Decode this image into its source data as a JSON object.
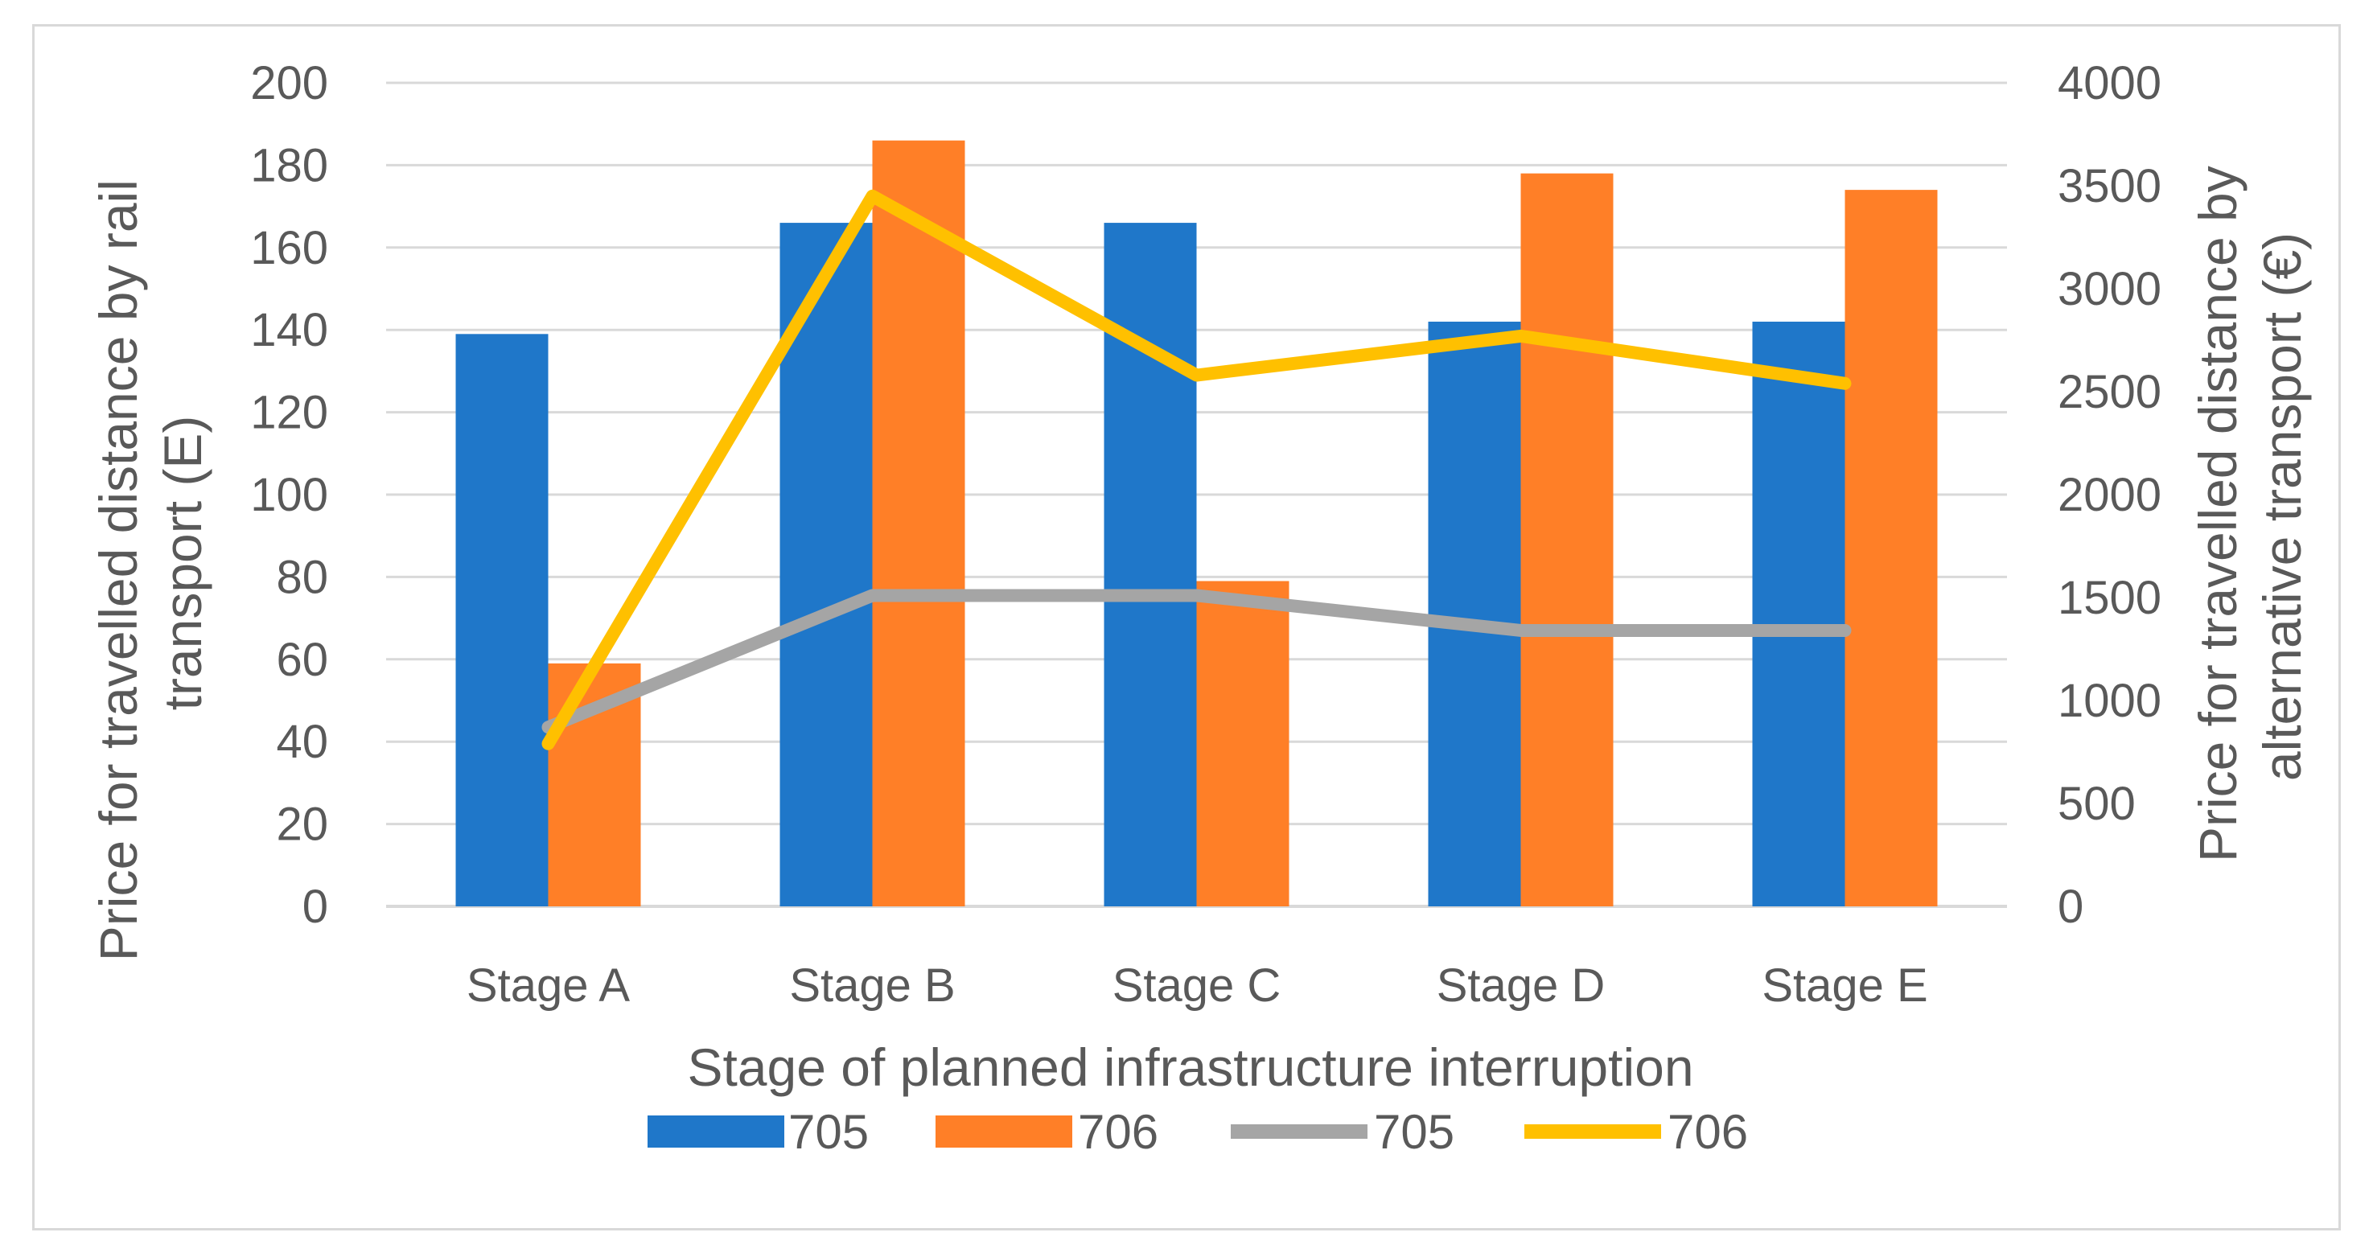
{
  "chart_data": {
    "type": "bar",
    "title": "",
    "categories": [
      "Stage A",
      "Stage B",
      "Stage C",
      "Stage D",
      "Stage E"
    ],
    "xlabel": "Stage of planned infrastructure interruption",
    "ylabel_left": "Price for travelled distance by rail transport (E)",
    "ylabel_left_lines": [
      "Price for travelled distance by rail",
      "transport (E)"
    ],
    "ylabel_right": "Price for travelled distance by alternative transport (€)",
    "ylabel_right_lines": [
      "Price for travelled distance by",
      "alternative transport (€)"
    ],
    "ylim_left": [
      0,
      200
    ],
    "ylim_right": [
      0,
      4000
    ],
    "yticks_left": [
      "0",
      "20",
      "40",
      "60",
      "80",
      "100",
      "120",
      "140",
      "160",
      "180",
      "200"
    ],
    "yticks_right": [
      "0",
      "500",
      "1000",
      "1500",
      "2000",
      "2500",
      "3000",
      "3500",
      "4000"
    ],
    "grid": true,
    "legend_position": "bottom",
    "bar_series": [
      {
        "name": "705",
        "axis": "left",
        "color": "#1f77c9",
        "values": [
          139,
          166,
          166,
          142,
          142
        ]
      },
      {
        "name": "706",
        "axis": "left",
        "color": "#ff7f27",
        "values": [
          59,
          186,
          79,
          178,
          174
        ]
      }
    ],
    "line_series": [
      {
        "name": "705",
        "axis": "right",
        "color": "#a5a5a5",
        "values": [
          870,
          1510,
          1510,
          1340,
          1340
        ]
      },
      {
        "name": "706",
        "axis": "right",
        "color": "#ffc000",
        "values": [
          790,
          3450,
          2580,
          2770,
          2540
        ]
      }
    ]
  }
}
